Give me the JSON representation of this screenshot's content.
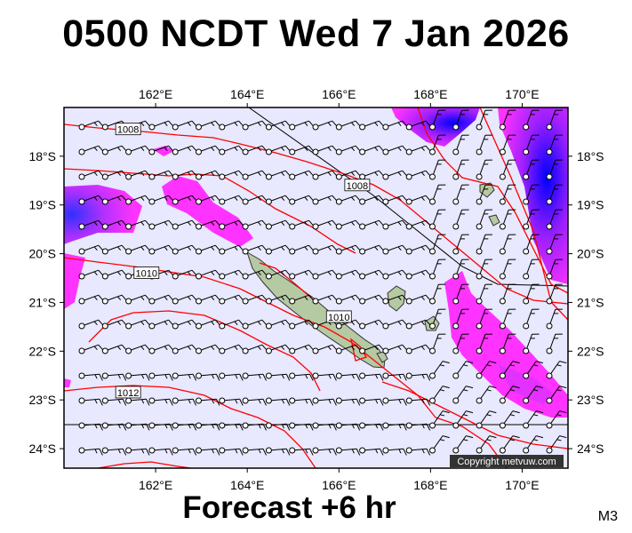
{
  "header": {
    "title": "0500 NCDT Wed 7 Jan 2026"
  },
  "footer": {
    "subtitle": "Forecast +6 hr",
    "model_code": "M3"
  },
  "map": {
    "lon_range": [
      160.0,
      171.0
    ],
    "lat_range": [
      -24.4,
      -17.0
    ],
    "lon_ticks": [
      "162°E",
      "164°E",
      "166°E",
      "168°E",
      "170°E"
    ],
    "lon_tick_values": [
      162,
      164,
      166,
      168,
      170
    ],
    "lat_ticks": [
      "18°S",
      "19°S",
      "20°S",
      "21°S",
      "22°S",
      "23°S",
      "24°S"
    ],
    "lat_tick_values": [
      -18,
      -19,
      -20,
      -21,
      -22,
      -23,
      -24
    ],
    "isobar_labels": [
      {
        "text": "1008",
        "lon": 161.4,
        "lat": -17.45
      },
      {
        "text": "1008",
        "lon": 166.4,
        "lat": -18.6
      },
      {
        "text": "1010",
        "lon": 161.8,
        "lat": -20.4
      },
      {
        "text": "1010",
        "lon": 166.0,
        "lat": -21.3
      },
      {
        "text": "1012",
        "lon": 161.4,
        "lat": -22.85
      }
    ],
    "copyright": "Copyright metvuw.com",
    "colors": {
      "ocean": "#e8e8ff",
      "rain_light": "#ff33ff",
      "rain_heavy": "#0000ff",
      "isobar": "#ff0000",
      "land": "#b5c9a3"
    }
  }
}
